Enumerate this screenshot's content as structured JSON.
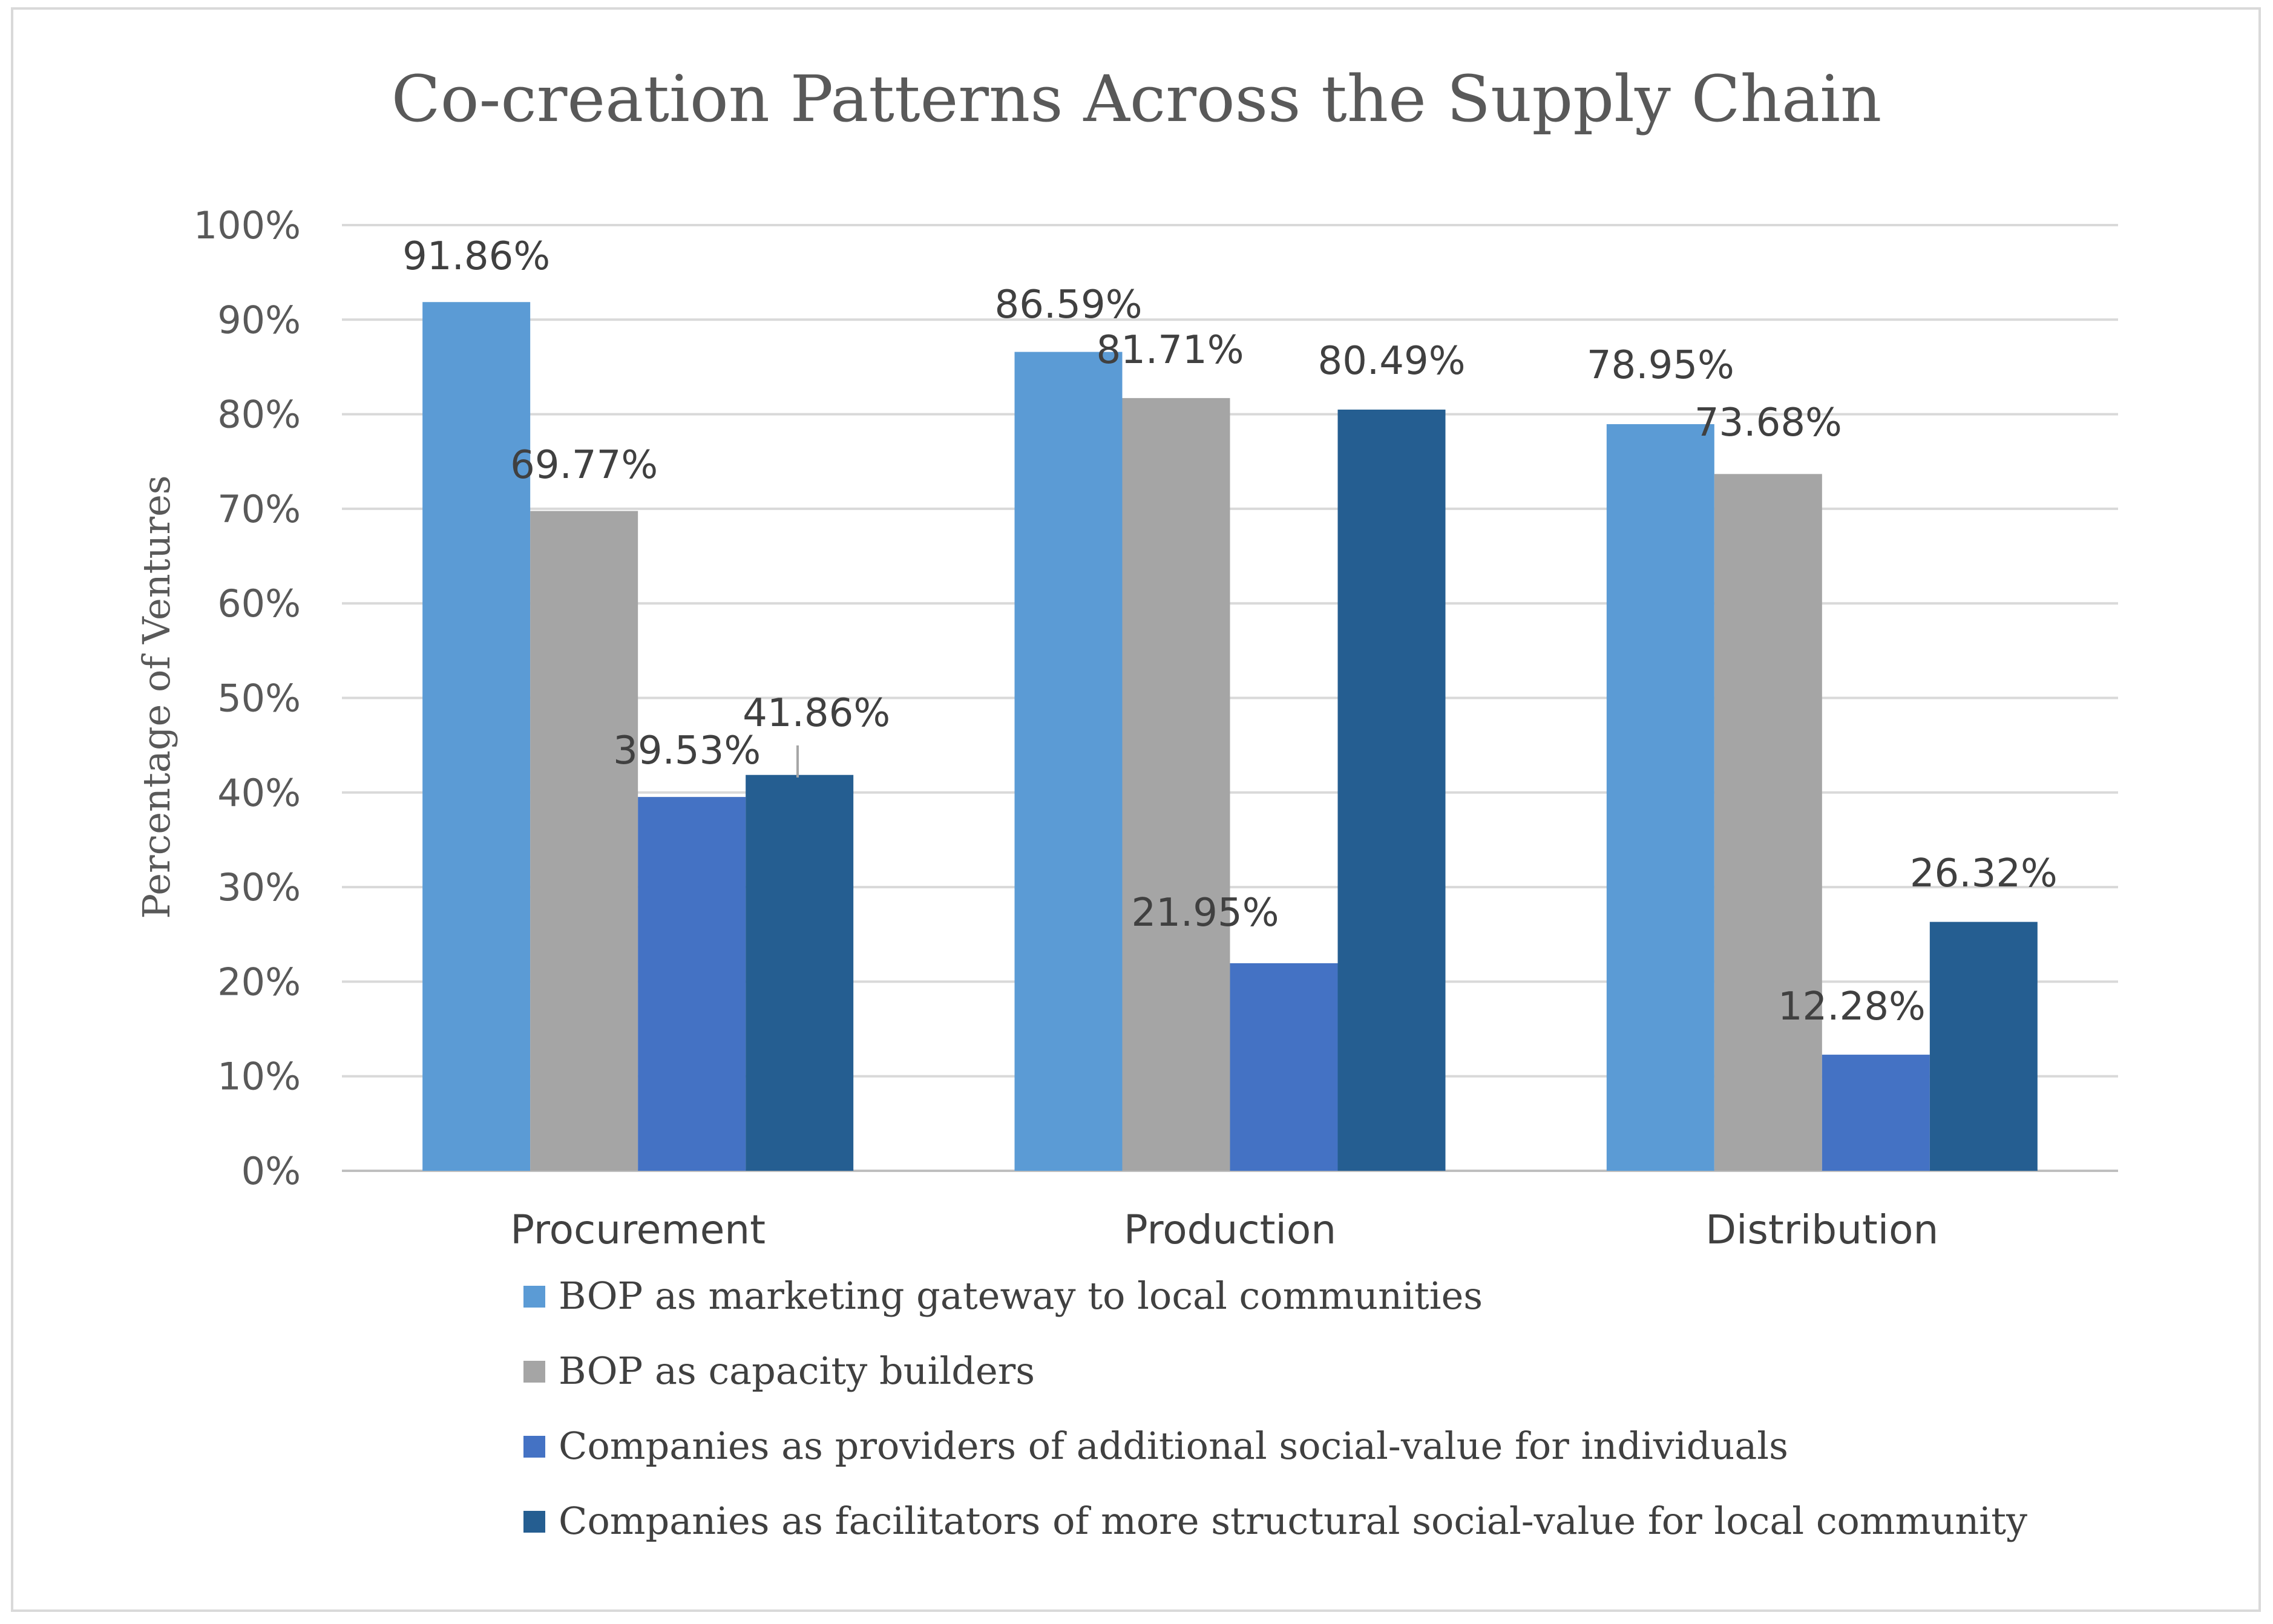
{
  "chart_data": {
    "type": "bar",
    "title": "Co-creation Patterns Across the Supply Chain",
    "xlabel": "",
    "ylabel": "Percentage of Ventures",
    "ylim": [
      0,
      100
    ],
    "yticks": [
      "0%",
      "10%",
      "20%",
      "30%",
      "40%",
      "50%",
      "60%",
      "70%",
      "80%",
      "90%",
      "100%"
    ],
    "grid": true,
    "legend_position": "bottom",
    "categories": [
      "Procurement",
      "Production",
      "Distribution"
    ],
    "series": [
      {
        "name": "BOP as marketing gateway to local communities",
        "color": "#5B9BD5",
        "values": [
          91.86,
          86.59,
          78.95
        ],
        "labels": [
          "91.86%",
          "86.59%",
          "78.95%"
        ]
      },
      {
        "name": "BOP as capacity builders",
        "color": "#A5A5A5",
        "values": [
          69.77,
          81.71,
          73.68
        ],
        "labels": [
          "69.77%",
          "81.71%",
          "73.68%"
        ]
      },
      {
        "name": "Companies as providers of additional social-value for individuals",
        "color": "#4472C4",
        "values": [
          39.53,
          21.95,
          12.28
        ],
        "labels": [
          "39.53%",
          "21.95%",
          "12.28%"
        ]
      },
      {
        "name": "Companies as facilitators of more structural social-value for local community",
        "color": "#255E91",
        "values": [
          41.86,
          80.49,
          26.32
        ],
        "labels": [
          "41.86%",
          "80.49%",
          "26.32%"
        ]
      }
    ]
  }
}
